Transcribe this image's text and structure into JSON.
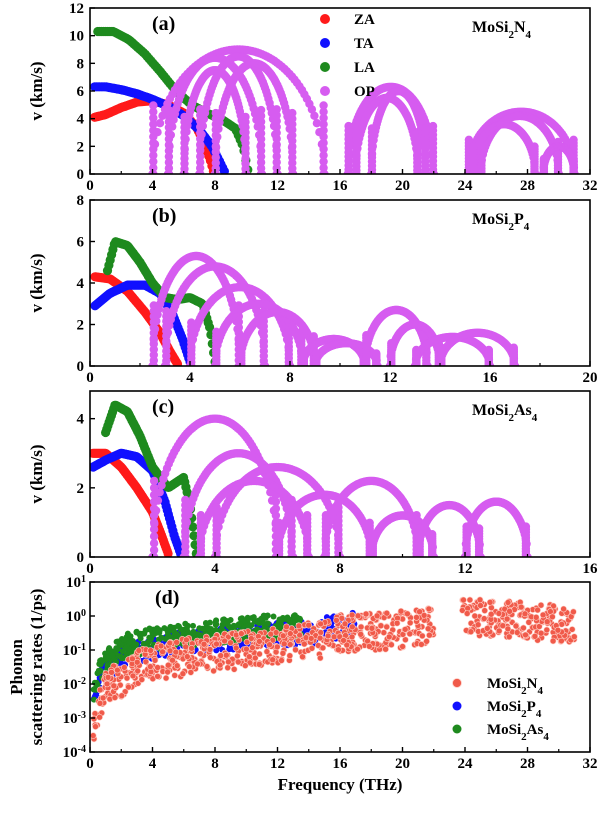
{
  "xlabel_bottom": "Frequency (THz)",
  "colors": {
    "ZA": "#ff1a1a",
    "TA": "#1010ff",
    "LA": "#1e8a1e",
    "OP": "#d65cf0",
    "N4": "#f05a4a",
    "P4": "#1010ff",
    "As4": "#1e8a1e"
  },
  "chart_data": [
    {
      "type": "scatter",
      "panel": "(a)",
      "material": {
        "base": "MoSi",
        "s1": "2",
        "mid": "N",
        "s2": "4"
      },
      "ylabel": "v (km/s)",
      "xlim": [
        0,
        32
      ],
      "ylim": [
        0,
        12
      ],
      "xticks": [
        "0",
        "4",
        "8",
        "12",
        "16",
        "20",
        "24",
        "28",
        "32"
      ],
      "yticks": [
        "0",
        "2",
        "4",
        "6",
        "8",
        "10",
        "12"
      ],
      "legend": [
        "ZA",
        "TA",
        "LA",
        "OP"
      ],
      "series": [
        {
          "name": "ZA",
          "points": [
            [
              0.3,
              4.1
            ],
            [
              1,
              4.3
            ],
            [
              2,
              4.8
            ],
            [
              3,
              5.2
            ],
            [
              4,
              5.3
            ],
            [
              5,
              5.0
            ],
            [
              6,
              4.4
            ],
            [
              6.8,
              3.4
            ],
            [
              7.3,
              2.3
            ],
            [
              7.7,
              1.0
            ],
            [
              7.9,
              0.2
            ]
          ]
        },
        {
          "name": "TA",
          "points": [
            [
              0.3,
              6.3
            ],
            [
              1,
              6.3
            ],
            [
              2,
              6.1
            ],
            [
              3,
              5.8
            ],
            [
              4,
              5.4
            ],
            [
              5,
              4.9
            ],
            [
              6,
              4.2
            ],
            [
              7,
              3.2
            ],
            [
              7.8,
              2.0
            ],
            [
              8.3,
              0.9
            ],
            [
              8.6,
              0.2
            ]
          ]
        },
        {
          "name": "LA",
          "points": [
            [
              0.5,
              10.3
            ],
            [
              1.5,
              10.3
            ],
            [
              2.5,
              9.7
            ],
            [
              3.5,
              8.7
            ],
            [
              4.5,
              7.4
            ],
            [
              5.5,
              6.0
            ],
            [
              6.5,
              5.0
            ],
            [
              7.5,
              4.4
            ],
            [
              8.5,
              3.9
            ],
            [
              9.3,
              3.3
            ],
            [
              9.8,
              2.0
            ],
            [
              10.1,
              0.3
            ]
          ]
        },
        {
          "name": "OP",
          "arcs": [
            [
              4,
              15,
              9
            ],
            [
              5,
              11,
              8.4
            ],
            [
              6,
              10,
              7.5
            ],
            [
              7,
              12,
              8.5
            ],
            [
              8,
              13,
              8
            ],
            [
              16.5,
              22,
              6.3
            ],
            [
              17,
              21,
              5.5
            ],
            [
              18,
              21.5,
              6
            ],
            [
              24.2,
              31,
              4.5
            ],
            [
              25,
              30,
              4.2
            ],
            [
              24.5,
              28.5,
              3.6
            ],
            [
              29,
              31,
              2
            ]
          ]
        }
      ]
    },
    {
      "type": "scatter",
      "panel": "(b)",
      "material": {
        "base": "MoSi",
        "s1": "2",
        "mid": "P",
        "s2": "4"
      },
      "ylabel": "v (km/s)",
      "xlim": [
        0,
        20
      ],
      "ylim": [
        0,
        8
      ],
      "xticks": [
        "0",
        "4",
        "8",
        "12",
        "16",
        "20"
      ],
      "yticks": [
        "0",
        "2",
        "4",
        "6",
        "8"
      ],
      "series": [
        {
          "name": "ZA",
          "points": [
            [
              0.2,
              4.3
            ],
            [
              0.8,
              4.2
            ],
            [
              1.5,
              3.6
            ],
            [
              2.2,
              2.6
            ],
            [
              2.8,
              1.6
            ],
            [
              3.2,
              0.7
            ],
            [
              3.5,
              0.1
            ]
          ]
        },
        {
          "name": "TA",
          "points": [
            [
              0.2,
              2.9
            ],
            [
              0.8,
              3.5
            ],
            [
              1.5,
              3.9
            ],
            [
              2.2,
              3.9
            ],
            [
              2.8,
              3.5
            ],
            [
              3.3,
              2.5
            ],
            [
              3.7,
              1.3
            ],
            [
              4.0,
              0.2
            ]
          ]
        },
        {
          "name": "LA",
          "points": [
            [
              0.7,
              4.6
            ],
            [
              1,
              6.0
            ],
            [
              1.5,
              5.8
            ],
            [
              2,
              5.0
            ],
            [
              2.5,
              4.0
            ],
            [
              3,
              3.3
            ],
            [
              3.5,
              3.2
            ],
            [
              4,
              3.3
            ],
            [
              4.5,
              3.0
            ],
            [
              4.8,
              1.8
            ],
            [
              5,
              0.2
            ]
          ]
        },
        {
          "name": "OP",
          "arcs": [
            [
              2.5,
              6,
              5.3
            ],
            [
              3,
              7,
              4.8
            ],
            [
              4,
              8,
              3.8
            ],
            [
              5,
              8.5,
              3.0
            ],
            [
              6,
              9,
              2.6
            ],
            [
              8.5,
              11,
              1.3
            ],
            [
              9,
              11.5,
              1.1
            ],
            [
              11,
              13.5,
              2.7
            ],
            [
              12,
              14,
              2.0
            ],
            [
              13,
              16,
              1.4
            ],
            [
              14,
              17,
              1.6
            ]
          ]
        }
      ]
    },
    {
      "type": "scatter",
      "panel": "(c)",
      "material": {
        "base": "MoSi",
        "s1": "2",
        "mid": "As",
        "s2": "4"
      },
      "ylabel": "v (km/s)",
      "xlim": [
        0,
        16
      ],
      "ylim": [
        0,
        4.8
      ],
      "xticks": [
        "0",
        "4",
        "8",
        "12",
        "16"
      ],
      "yticks": [
        "0",
        "2",
        "4"
      ],
      "series": [
        {
          "name": "ZA",
          "points": [
            [
              0.1,
              3.0
            ],
            [
              0.5,
              3.0
            ],
            [
              1,
              2.6
            ],
            [
              1.5,
              2.0
            ],
            [
              2,
              1.3
            ],
            [
              2.3,
              0.6
            ],
            [
              2.5,
              0.1
            ]
          ]
        },
        {
          "name": "TA",
          "points": [
            [
              0.1,
              2.6
            ],
            [
              0.5,
              2.8
            ],
            [
              1,
              3.0
            ],
            [
              1.5,
              2.9
            ],
            [
              2,
              2.5
            ],
            [
              2.4,
              1.6
            ],
            [
              2.7,
              0.6
            ],
            [
              2.9,
              0.1
            ]
          ]
        },
        {
          "name": "LA",
          "points": [
            [
              0.5,
              3.6
            ],
            [
              0.8,
              4.4
            ],
            [
              1.2,
              4.2
            ],
            [
              1.6,
              3.5
            ],
            [
              2,
              2.6
            ],
            [
              2.5,
              2.0
            ],
            [
              3,
              2.3
            ],
            [
              3.2,
              1.5
            ],
            [
              3.4,
              0.1
            ]
          ]
        },
        {
          "name": "OP",
          "arcs": [
            [
              2,
              6,
              4.0
            ],
            [
              3,
              6.5,
              3.0
            ],
            [
              3.5,
              7,
              2.2
            ],
            [
              4,
              8,
              2.6
            ],
            [
              6,
              9,
              1.8
            ],
            [
              7.5,
              10.5,
              2.2
            ],
            [
              9,
              11,
              1.2
            ],
            [
              10.5,
              12.5,
              1.5
            ],
            [
              12,
              14,
              1.6
            ]
          ]
        }
      ]
    },
    {
      "type": "scatter",
      "panel": "(d)",
      "ylabel_lines": [
        "Phonon",
        "scattering rates (1/ps)"
      ],
      "xlim": [
        0,
        32
      ],
      "ylim_log": [
        -4,
        1
      ],
      "xticks": [
        "0",
        "4",
        "8",
        "12",
        "16",
        "20",
        "24",
        "28",
        "32"
      ],
      "yticks": [
        {
          "base": "10",
          "exp": "-4"
        },
        {
          "base": "10",
          "exp": "-3"
        },
        {
          "base": "10",
          "exp": "-2"
        },
        {
          "base": "10",
          "exp": "-1"
        },
        {
          "base": "10",
          "exp": "0"
        },
        {
          "base": "10",
          "exp": "1"
        }
      ],
      "legend": [
        {
          "base": "MoSi",
          "s1": "2",
          "mid": "N",
          "s2": "4"
        },
        {
          "base": "MoSi",
          "s1": "2",
          "mid": "P",
          "s2": "4"
        },
        {
          "base": "MoSi",
          "s1": "2",
          "mid": "As",
          "s2": "4"
        }
      ],
      "series": [
        {
          "name": "P4",
          "trend": [
            [
              0.2,
              0.003
            ],
            [
              1,
              0.02
            ],
            [
              2,
              0.06
            ],
            [
              4,
              0.12
            ],
            [
              8,
              0.2
            ],
            [
              12,
              0.3
            ],
            [
              14,
              0.3
            ],
            [
              16,
              0.5
            ],
            [
              17,
              0.6
            ]
          ]
        },
        {
          "name": "As4",
          "trend": [
            [
              0.2,
              0.005
            ],
            [
              1,
              0.04
            ],
            [
              2,
              0.12
            ],
            [
              4,
              0.2
            ],
            [
              8,
              0.35
            ],
            [
              12,
              0.5
            ],
            [
              13.5,
              0.5
            ]
          ]
        },
        {
          "name": "N4",
          "trend": [
            [
              0.2,
              0.0003
            ],
            [
              0.5,
              0.002
            ],
            [
              1,
              0.006
            ],
            [
              2,
              0.015
            ],
            [
              4,
              0.04
            ],
            [
              8,
              0.08
            ],
            [
              12,
              0.13
            ],
            [
              15,
              0.2
            ],
            [
              16,
              0.3
            ],
            [
              20,
              0.4
            ],
            [
              22,
              0.5
            ],
            [
              24,
              0.9
            ],
            [
              26,
              0.8
            ],
            [
              28,
              0.7
            ],
            [
              31,
              0.6
            ]
          ],
          "gap": [
            22,
            23.8
          ]
        }
      ]
    }
  ]
}
